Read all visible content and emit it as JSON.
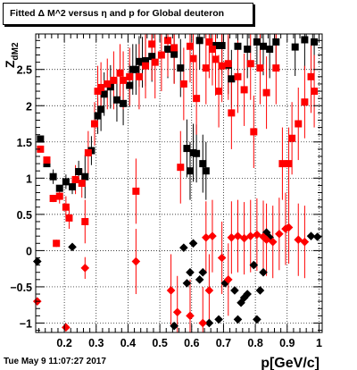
{
  "title": "Fitted Δ M^2 versus η and p for Global deuteron",
  "timestamp": "Tue May  9 11:07:27 2017",
  "chart_data": {
    "type": "scatter",
    "xlabel": "p[GeV/c]",
    "ylabel": "Z_dM2",
    "xlim": [
      0.11,
      1.01
    ],
    "ylim": [
      -1.13,
      2.99
    ],
    "grid": true,
    "x_ticks": [
      0.2,
      0.3,
      0.4,
      0.5,
      0.6,
      0.7,
      0.8,
      0.9,
      1.0
    ],
    "x_tick_labels": [
      "0.2",
      "0.3",
      "0.4",
      "0.5",
      "0.6",
      "0.7",
      "0.8",
      "0.9",
      "1"
    ],
    "y_ticks": [
      -1,
      -0.5,
      0,
      0.5,
      1,
      1.5,
      2,
      2.5
    ],
    "y_tick_labels": [
      "−1",
      "−0.5",
      "0",
      "0.5",
      "1",
      "1.5",
      "2",
      "2.5"
    ],
    "colors": {
      "black_series": "#000000",
      "red_series": "#ff0000"
    },
    "series": [
      {
        "marker": "square",
        "color": "#000000",
        "points": [
          [
            0.125,
            1.54,
            0.0
          ],
          [
            0.145,
            1.2,
            0.0
          ],
          [
            0.165,
            1.02,
            0.1
          ],
          [
            0.185,
            0.86,
            0.0
          ],
          [
            0.205,
            0.95,
            0.1
          ],
          [
            0.225,
            0.88,
            0.1
          ],
          [
            0.245,
            1.09,
            0.15
          ],
          [
            0.265,
            1.02,
            0.3
          ],
          [
            0.285,
            1.38,
            0.2
          ],
          [
            0.305,
            1.86,
            0.25
          ],
          [
            0.315,
            1.95,
            0.3
          ],
          [
            0.325,
            2.16,
            0.3
          ],
          [
            0.345,
            2.26,
            0.3
          ],
          [
            0.365,
            2.08,
            0.3
          ],
          [
            0.385,
            2.03,
            0.3
          ],
          [
            0.405,
            2.28,
            0.3
          ],
          [
            0.415,
            2.5,
            0.35
          ],
          [
            0.425,
            2.5,
            0.35
          ],
          [
            0.435,
            2.61,
            0.35
          ],
          [
            0.445,
            2.6,
            0.35
          ],
          [
            0.455,
            2.62,
            0.35
          ],
          [
            0.475,
            2.68,
            0.35
          ],
          [
            0.525,
            2.78,
            0.4
          ],
          [
            0.545,
            2.71,
            0.4
          ],
          [
            0.565,
            2.52,
            0.4
          ],
          [
            0.585,
            1.41,
            0.4
          ],
          [
            0.595,
            1.1,
            0.4
          ],
          [
            0.605,
            1.35,
            0.4
          ],
          [
            0.615,
            1.34,
            0.4
          ],
          [
            0.625,
            2.9,
            0.4
          ],
          [
            0.635,
            1.2,
            0.4
          ],
          [
            0.645,
            1.1,
            0.4
          ],
          [
            0.675,
            2.83,
            0.4
          ],
          [
            0.695,
            2.83,
            0.4
          ],
          [
            0.715,
            2.56,
            0.4
          ],
          [
            0.725,
            2.37,
            0.4
          ],
          [
            0.745,
            2.82,
            0.4
          ],
          [
            0.775,
            2.78,
            0.4
          ],
          [
            0.805,
            2.88,
            0.4
          ],
          [
            0.825,
            2.82,
            0.4
          ],
          [
            0.845,
            2.78,
            0.4
          ],
          [
            0.865,
            2.88,
            0.4
          ],
          [
            0.925,
            2.81,
            0.4
          ],
          [
            0.955,
            2.91,
            0.4
          ],
          [
            0.985,
            2.88,
            0.4
          ]
        ]
      },
      {
        "marker": "diamond",
        "color": "#000000",
        "points": [
          [
            0.115,
            -0.15,
            0.0
          ],
          [
            0.225,
            0.05,
            0.0
          ],
          [
            0.545,
            -1.04,
            0.0
          ],
          [
            0.575,
            0.04,
            0.0
          ],
          [
            0.585,
            -0.45,
            0.0
          ],
          [
            0.595,
            -0.3,
            0.0
          ],
          [
            0.605,
            0.1,
            0.0
          ],
          [
            0.625,
            -0.4,
            0.0
          ],
          [
            0.635,
            -0.3,
            0.0
          ],
          [
            0.655,
            -1.0,
            0.0
          ],
          [
            0.685,
            -0.95,
            0.0
          ],
          [
            0.705,
            -0.45,
            0.0
          ],
          [
            0.735,
            -0.55,
            0.0
          ],
          [
            0.745,
            -0.95,
            0.0
          ],
          [
            0.755,
            -0.72,
            0.0
          ],
          [
            0.765,
            -0.65,
            0.0
          ],
          [
            0.775,
            -0.6,
            0.0
          ],
          [
            0.795,
            -0.2,
            0.0
          ],
          [
            0.805,
            -0.95,
            0.0
          ],
          [
            0.815,
            -0.55,
            0.0
          ],
          [
            0.825,
            -0.3,
            0.0
          ],
          [
            0.835,
            0.25,
            0.0
          ],
          [
            0.845,
            0.18,
            0.0
          ],
          [
            0.975,
            0.2,
            0.0
          ],
          [
            0.995,
            0.19,
            0.0
          ]
        ]
      },
      {
        "marker": "square",
        "color": "#ff0000",
        "points": [
          [
            0.125,
            1.4,
            0.0
          ],
          [
            0.145,
            1.25,
            0.05
          ],
          [
            0.165,
            0.72,
            0.05
          ],
          [
            0.175,
            0.1,
            0.05
          ],
          [
            0.185,
            0.75,
            0.1
          ],
          [
            0.205,
            0.6,
            0.15
          ],
          [
            0.215,
            0.45,
            0.15
          ],
          [
            0.235,
            0.98,
            0.2
          ],
          [
            0.255,
            0.93,
            0.2
          ],
          [
            0.265,
            0.4,
            0.3
          ],
          [
            0.275,
            1.35,
            0.3
          ],
          [
            0.295,
            1.75,
            0.3
          ],
          [
            0.305,
            2.2,
            0.35
          ],
          [
            0.315,
            2.25,
            0.35
          ],
          [
            0.335,
            2.3,
            0.35
          ],
          [
            0.355,
            2.35,
            0.4
          ],
          [
            0.375,
            2.45,
            0.4
          ],
          [
            0.385,
            2.35,
            0.4
          ],
          [
            0.405,
            2.4,
            0.4
          ],
          [
            0.425,
            0.82,
            0.45
          ],
          [
            0.435,
            2.4,
            0.45
          ],
          [
            0.455,
            2.55,
            0.45
          ],
          [
            0.475,
            2.85,
            0.5
          ],
          [
            0.485,
            2.6,
            0.5
          ],
          [
            0.505,
            2.7,
            0.5
          ],
          [
            0.525,
            2.9,
            0.5
          ],
          [
            0.545,
            2.8,
            0.5
          ],
          [
            0.565,
            1.15,
            0.5
          ],
          [
            0.575,
            2.3,
            0.5
          ],
          [
            0.595,
            2.82,
            0.5
          ],
          [
            0.605,
            2.65,
            0.5
          ],
          [
            0.615,
            2.1,
            0.5
          ],
          [
            0.645,
            2.52,
            0.5
          ],
          [
            0.655,
            2.88,
            0.5
          ],
          [
            0.665,
            2.78,
            0.5
          ],
          [
            0.675,
            2.64,
            0.5
          ],
          [
            0.685,
            2.2,
            0.5
          ],
          [
            0.695,
            2.55,
            0.5
          ],
          [
            0.715,
            2.58,
            0.5
          ],
          [
            0.725,
            1.9,
            0.5
          ],
          [
            0.745,
            2.4,
            0.5
          ],
          [
            0.765,
            2.22,
            0.5
          ],
          [
            0.785,
            2.58,
            0.5
          ],
          [
            0.795,
            1.64,
            0.5
          ],
          [
            0.815,
            2.52,
            0.5
          ],
          [
            0.835,
            2.18,
            0.5
          ],
          [
            0.865,
            2.52,
            0.5
          ],
          [
            0.885,
            1.2,
            0.5
          ],
          [
            0.905,
            1.2,
            0.5
          ],
          [
            0.915,
            1.55,
            0.5
          ],
          [
            0.935,
            1.75,
            0.5
          ],
          [
            0.955,
            2.05,
            0.5
          ],
          [
            0.975,
            2.4,
            0.5
          ],
          [
            0.985,
            2.2,
            0.5
          ]
        ]
      },
      {
        "marker": "diamond",
        "color": "#ff0000",
        "points": [
          [
            0.115,
            -0.7,
            0.0
          ],
          [
            0.205,
            -1.06,
            0.0
          ],
          [
            0.265,
            -0.24,
            0.15
          ],
          [
            0.425,
            -0.15,
            0.45
          ],
          [
            0.535,
            -0.55,
            0.5
          ],
          [
            0.555,
            -0.85,
            0.5
          ],
          [
            0.595,
            -0.9,
            0.5
          ],
          [
            0.635,
            -1.0,
            0.5
          ],
          [
            0.645,
            0.18,
            0.5
          ],
          [
            0.655,
            -0.55,
            0.5
          ],
          [
            0.665,
            0.2,
            0.5
          ],
          [
            0.695,
            -0.1,
            0.5
          ],
          [
            0.715,
            -0.4,
            0.5
          ],
          [
            0.725,
            0.18,
            0.5
          ],
          [
            0.745,
            0.2,
            0.5
          ],
          [
            0.765,
            0.17,
            0.5
          ],
          [
            0.785,
            0.2,
            0.5
          ],
          [
            0.805,
            0.22,
            0.5
          ],
          [
            0.825,
            0.19,
            0.5
          ],
          [
            0.835,
            0.15,
            0.5
          ],
          [
            0.855,
            0.12,
            0.5
          ],
          [
            0.875,
            0.23,
            0.5
          ],
          [
            0.895,
            0.3,
            0.5
          ],
          [
            0.905,
            0.32,
            0.5
          ],
          [
            0.935,
            0.15,
            0.5
          ],
          [
            0.955,
            0.12,
            0.5
          ]
        ]
      }
    ]
  }
}
